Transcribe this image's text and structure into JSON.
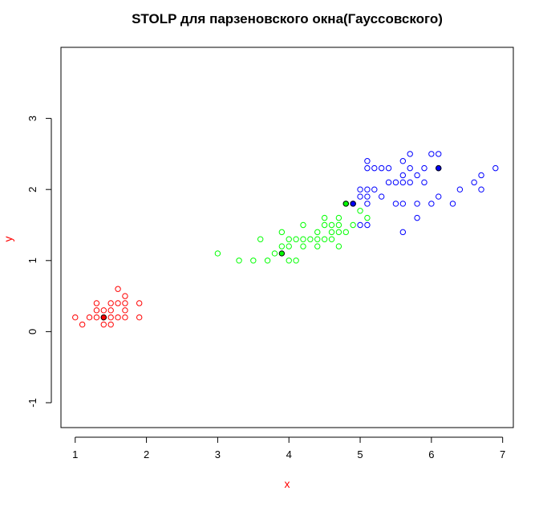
{
  "chart_data": {
    "type": "scatter",
    "title": "STOLP для парзеновского окна(Гауссовского)",
    "xlabel": "x",
    "ylabel": "y",
    "xlim": [
      0.8,
      7.15
    ],
    "ylim": [
      -1.35,
      4.0
    ],
    "xticks": [
      1,
      2,
      3,
      4,
      5,
      6,
      7
    ],
    "yticks": [
      -1,
      0,
      1,
      2,
      3
    ],
    "xtick_labels": [
      "1",
      "2",
      "3",
      "4",
      "5",
      "6",
      "7"
    ],
    "ytick_labels": [
      "-1",
      "0",
      "1",
      "2",
      "3"
    ],
    "grid": false,
    "colors": {
      "title": "#000000",
      "xlabel": "#ff0000",
      "ylabel": "#ff0000",
      "axis": "#000000"
    },
    "series": [
      {
        "color": "#ff0000",
        "marker": "open-circle",
        "points": [
          [
            1.0,
            0.2
          ],
          [
            1.1,
            0.1
          ],
          [
            1.2,
            0.2
          ],
          [
            1.3,
            0.2
          ],
          [
            1.3,
            0.3
          ],
          [
            1.3,
            0.4
          ],
          [
            1.4,
            0.1
          ],
          [
            1.4,
            0.2
          ],
          [
            1.4,
            0.3
          ],
          [
            1.5,
            0.1
          ],
          [
            1.5,
            0.2
          ],
          [
            1.5,
            0.3
          ],
          [
            1.5,
            0.4
          ],
          [
            1.6,
            0.2
          ],
          [
            1.6,
            0.4
          ],
          [
            1.6,
            0.6
          ],
          [
            1.7,
            0.2
          ],
          [
            1.7,
            0.3
          ],
          [
            1.7,
            0.4
          ],
          [
            1.7,
            0.5
          ],
          [
            1.9,
            0.2
          ],
          [
            1.9,
            0.4
          ]
        ]
      },
      {
        "color": "#00ff00",
        "marker": "open-circle",
        "points": [
          [
            3.0,
            1.1
          ],
          [
            3.3,
            1.0
          ],
          [
            3.5,
            1.0
          ],
          [
            3.6,
            1.3
          ],
          [
            3.7,
            1.0
          ],
          [
            3.8,
            1.1
          ],
          [
            3.9,
            1.2
          ],
          [
            3.9,
            1.4
          ],
          [
            4.0,
            1.0
          ],
          [
            4.0,
            1.2
          ],
          [
            4.0,
            1.3
          ],
          [
            4.1,
            1.0
          ],
          [
            4.1,
            1.3
          ],
          [
            4.2,
            1.2
          ],
          [
            4.2,
            1.3
          ],
          [
            4.2,
            1.5
          ],
          [
            4.3,
            1.3
          ],
          [
            4.4,
            1.2
          ],
          [
            4.4,
            1.3
          ],
          [
            4.4,
            1.4
          ],
          [
            4.5,
            1.3
          ],
          [
            4.5,
            1.5
          ],
          [
            4.5,
            1.6
          ],
          [
            4.6,
            1.3
          ],
          [
            4.6,
            1.4
          ],
          [
            4.6,
            1.5
          ],
          [
            4.7,
            1.2
          ],
          [
            4.7,
            1.4
          ],
          [
            4.7,
            1.5
          ],
          [
            4.7,
            1.6
          ],
          [
            4.8,
            1.4
          ],
          [
            4.8,
            1.8
          ],
          [
            4.9,
            1.5
          ],
          [
            5.0,
            1.7
          ],
          [
            5.1,
            1.6
          ]
        ]
      },
      {
        "color": "#0000ff",
        "marker": "open-circle",
        "points": [
          [
            4.9,
            1.8
          ],
          [
            5.0,
            1.5
          ],
          [
            5.0,
            1.9
          ],
          [
            5.0,
            2.0
          ],
          [
            5.1,
            1.5
          ],
          [
            5.1,
            1.8
          ],
          [
            5.1,
            1.9
          ],
          [
            5.1,
            2.0
          ],
          [
            5.1,
            2.3
          ],
          [
            5.1,
            2.4
          ],
          [
            5.2,
            2.0
          ],
          [
            5.2,
            2.3
          ],
          [
            5.3,
            1.9
          ],
          [
            5.3,
            2.3
          ],
          [
            5.4,
            2.1
          ],
          [
            5.4,
            2.3
          ],
          [
            5.5,
            1.8
          ],
          [
            5.5,
            2.1
          ],
          [
            5.6,
            1.4
          ],
          [
            5.6,
            1.8
          ],
          [
            5.6,
            2.1
          ],
          [
            5.6,
            2.2
          ],
          [
            5.6,
            2.4
          ],
          [
            5.7,
            2.1
          ],
          [
            5.7,
            2.3
          ],
          [
            5.7,
            2.5
          ],
          [
            5.8,
            1.6
          ],
          [
            5.8,
            1.8
          ],
          [
            5.8,
            2.2
          ],
          [
            5.9,
            2.1
          ],
          [
            5.9,
            2.3
          ],
          [
            6.0,
            1.8
          ],
          [
            6.0,
            2.5
          ],
          [
            6.1,
            1.9
          ],
          [
            6.1,
            2.3
          ],
          [
            6.1,
            2.5
          ],
          [
            6.3,
            1.8
          ],
          [
            6.4,
            2.0
          ],
          [
            6.6,
            2.1
          ],
          [
            6.7,
            2.0
          ],
          [
            6.7,
            2.2
          ],
          [
            6.9,
            2.3
          ]
        ]
      }
    ],
    "highlighted": [
      {
        "x": 1.4,
        "y": 0.2,
        "color": "#ff0000"
      },
      {
        "x": 3.9,
        "y": 1.1,
        "color": "#00ff00"
      },
      {
        "x": 4.8,
        "y": 1.8,
        "color": "#00ff00"
      },
      {
        "x": 4.9,
        "y": 1.8,
        "color": "#0000ff"
      },
      {
        "x": 6.1,
        "y": 2.3,
        "color": "#0000ff"
      }
    ]
  }
}
